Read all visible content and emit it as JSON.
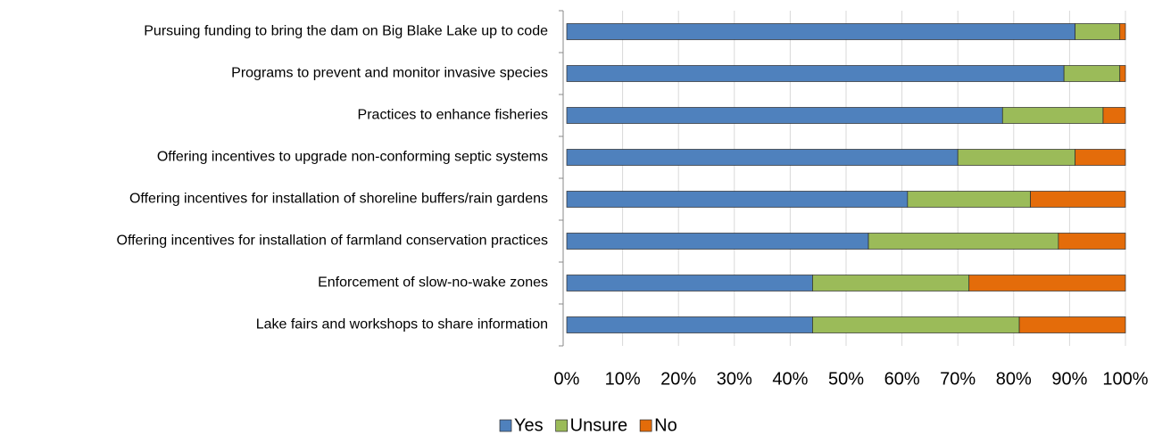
{
  "chart_data": {
    "type": "stacked-bar-horizontal",
    "categories": [
      "Pursuing funding to bring the dam on Big Blake Lake up to code",
      "Programs to prevent and monitor invasive species",
      "Practices to enhance fisheries",
      "Offering incentives to upgrade non-conforming septic systems",
      "Offering incentives for installation of shoreline buffers/rain gardens",
      "Offering incentives for installation of farmland conservation practices",
      "Enforcement of slow-no-wake zones",
      "Lake fairs and workshops to share information"
    ],
    "series": [
      {
        "name": "Yes",
        "color": "#4f81bd",
        "values": [
          91,
          89,
          78,
          70,
          61,
          54,
          44,
          44
        ]
      },
      {
        "name": "Unsure",
        "color": "#9bbb59",
        "values": [
          8,
          10,
          18,
          21,
          22,
          34,
          28,
          37
        ]
      },
      {
        "name": "No",
        "color": "#e46c0a",
        "values": [
          1,
          1,
          4,
          9,
          17,
          12,
          28,
          19
        ]
      }
    ],
    "xlim": [
      0,
      100
    ],
    "xticks": [
      {
        "value": 0,
        "label": "0%"
      },
      {
        "value": 10,
        "label": "10%"
      },
      {
        "value": 20,
        "label": "20%"
      },
      {
        "value": 30,
        "label": "30%"
      },
      {
        "value": 40,
        "label": "40%"
      },
      {
        "value": 50,
        "label": "50%"
      },
      {
        "value": 60,
        "label": "60%"
      },
      {
        "value": 70,
        "label": "70%"
      },
      {
        "value": 80,
        "label": "80%"
      },
      {
        "value": 90,
        "label": "90%"
      },
      {
        "value": 100,
        "label": "100%"
      }
    ],
    "grid": true,
    "legend": "bottom"
  }
}
